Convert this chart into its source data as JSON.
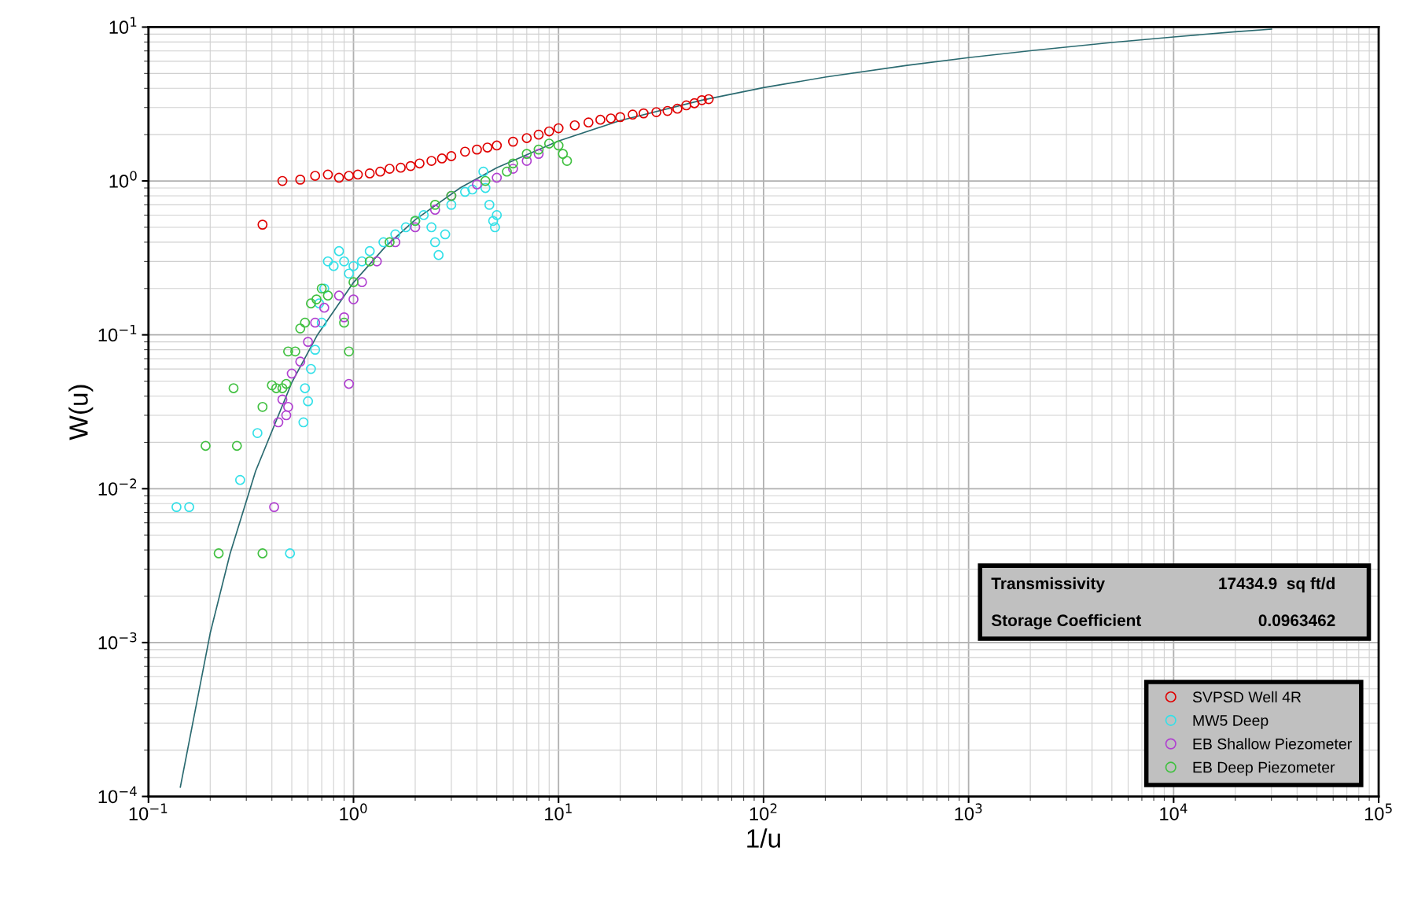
{
  "chart_data": {
    "type": "scatter",
    "xlabel": "1/u",
    "ylabel": "W(u)",
    "log": "xy",
    "grid": true,
    "marker": "circle",
    "legend": "bottom right",
    "xlim": [
      0.1,
      100000
    ],
    "ylim": [
      0.0001,
      10
    ],
    "xticks": [
      {
        "value": 0.1,
        "label": "10$^{−1}$"
      },
      {
        "value": 1,
        "label": "10$^{0}$"
      },
      {
        "value": 10,
        "label": "10$^{1}$"
      },
      {
        "value": 100,
        "label": "10$^{2}$"
      },
      {
        "value": 1000,
        "label": "10$^{3}$"
      },
      {
        "value": 10000,
        "label": "10$^{4}$"
      },
      {
        "value": 100000,
        "label": "10$^{5}$"
      }
    ],
    "yticks": [
      {
        "value": 0.0001,
        "label": "10$^{−4}$"
      },
      {
        "value": 0.001,
        "label": "10$^{−3}$"
      },
      {
        "value": 0.01,
        "label": "10$^{−2}$"
      },
      {
        "value": 0.1,
        "label": "10$^{−1}$"
      },
      {
        "value": 1,
        "label": "10$^{0}$"
      },
      {
        "value": 10,
        "label": "10$^{1}$"
      }
    ],
    "annotations": [
      "Transmissivity",
      "17434.9  sq ft/d",
      "Storage Coefficient",
      "0.0963462"
    ],
    "series": [
      {
        "type": "line",
        "marker": "none",
        "color": "#2a6a70",
        "x": [
          0.143,
          0.2,
          0.25,
          0.333,
          0.5,
          0.667,
          1,
          1.43,
          2,
          3.33,
          5,
          10,
          20,
          50,
          100,
          200,
          500,
          1000,
          2000,
          5000,
          10000,
          20000,
          30000
        ],
        "values": [
          0.000115,
          0.00115,
          0.00378,
          0.013,
          0.0489,
          0.1,
          0.219,
          0.374,
          0.56,
          0.906,
          1.22,
          1.82,
          2.47,
          3.35,
          4.04,
          4.73,
          5.64,
          6.33,
          7.02,
          7.94,
          8.63,
          9.33,
          9.7
        ]
      },
      {
        "name": "SVPSD Well 4R",
        "color": "#e00000",
        "x": [
          0.36,
          0.45,
          0.55,
          0.65,
          0.75,
          0.85,
          0.95,
          1.05,
          1.2,
          1.35,
          1.5,
          1.7,
          1.9,
          2.1,
          2.4,
          2.7,
          3,
          3.5,
          4,
          4.5,
          5,
          6,
          7,
          8,
          9,
          10,
          12,
          14,
          16,
          18,
          20,
          23,
          26,
          30,
          34,
          38,
          42,
          46,
          50,
          54
        ],
        "values": [
          0.52,
          1.0,
          1.02,
          1.08,
          1.1,
          1.05,
          1.08,
          1.1,
          1.12,
          1.15,
          1.2,
          1.22,
          1.25,
          1.3,
          1.35,
          1.4,
          1.45,
          1.55,
          1.6,
          1.65,
          1.7,
          1.8,
          1.9,
          2.0,
          2.1,
          2.2,
          2.3,
          2.4,
          2.5,
          2.55,
          2.6,
          2.7,
          2.75,
          2.8,
          2.85,
          2.95,
          3.1,
          3.2,
          3.35,
          3.4
        ]
      },
      {
        "name": "MW5 Deep",
        "color": "#33e0e8",
        "x": [
          0.137,
          0.158,
          0.28,
          0.34,
          0.49,
          0.57,
          0.6,
          0.58,
          0.62,
          0.65,
          0.7,
          0.68,
          0.72,
          0.75,
          0.8,
          0.85,
          0.9,
          0.95,
          1.0,
          1.1,
          1.2,
          1.4,
          1.6,
          1.8,
          2.0,
          2.2,
          2.4,
          2.5,
          2.6,
          2.8,
          3.0,
          3.5,
          3.8,
          4.3,
          4.4,
          4.6,
          4.8,
          4.9,
          5.0
        ],
        "values": [
          0.0076,
          0.0076,
          0.0114,
          0.023,
          0.0038,
          0.027,
          0.037,
          0.045,
          0.06,
          0.08,
          0.12,
          0.16,
          0.2,
          0.3,
          0.28,
          0.35,
          0.3,
          0.25,
          0.28,
          0.3,
          0.35,
          0.4,
          0.45,
          0.5,
          0.55,
          0.6,
          0.5,
          0.4,
          0.33,
          0.45,
          0.7,
          0.85,
          0.88,
          1.15,
          0.9,
          0.7,
          0.55,
          0.5,
          0.6
        ]
      },
      {
        "name": "EB Shallow Piezometer",
        "color": "#b040d0",
        "x": [
          0.41,
          0.43,
          0.45,
          0.47,
          0.48,
          0.5,
          0.55,
          0.6,
          0.65,
          0.72,
          0.85,
          0.9,
          0.95,
          1.0,
          1.1,
          1.3,
          1.6,
          2.0,
          2.5,
          3,
          4,
          5,
          6,
          7,
          8
        ],
        "values": [
          0.0076,
          0.027,
          0.038,
          0.03,
          0.034,
          0.056,
          0.067,
          0.09,
          0.12,
          0.15,
          0.18,
          0.13,
          0.048,
          0.17,
          0.22,
          0.3,
          0.4,
          0.5,
          0.65,
          0.8,
          0.95,
          1.05,
          1.2,
          1.35,
          1.5
        ]
      },
      {
        "name": "EB Deep Piezometer",
        "color": "#40c040",
        "x": [
          0.19,
          0.22,
          0.26,
          0.27,
          0.36,
          0.36,
          0.4,
          0.42,
          0.45,
          0.47,
          0.48,
          0.52,
          0.55,
          0.58,
          0.62,
          0.66,
          0.7,
          0.75,
          0.9,
          0.95,
          1.0,
          1.2,
          1.5,
          2.0,
          2.5,
          3,
          4.4,
          5.6,
          6,
          7,
          8,
          9,
          10,
          10.5,
          11
        ],
        "values": [
          0.019,
          0.0038,
          0.045,
          0.019,
          0.0038,
          0.034,
          0.047,
          0.045,
          0.045,
          0.048,
          0.078,
          0.078,
          0.11,
          0.12,
          0.16,
          0.17,
          0.2,
          0.18,
          0.12,
          0.078,
          0.22,
          0.3,
          0.4,
          0.55,
          0.7,
          0.8,
          1.0,
          1.15,
          1.3,
          1.5,
          1.6,
          1.75,
          1.7,
          1.5,
          1.35
        ]
      }
    ]
  }
}
